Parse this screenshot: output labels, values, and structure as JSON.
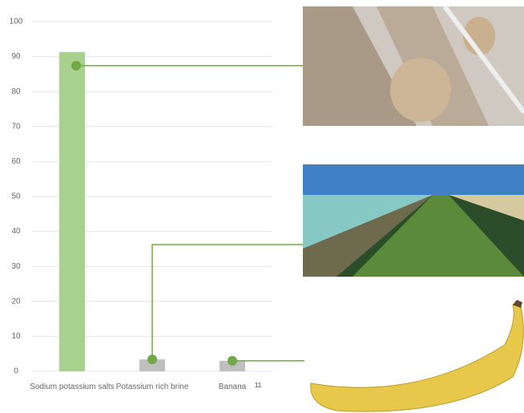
{
  "chart_data": {
    "type": "bar",
    "categories": [
      "Sodium potassium salts",
      "Potassium rich brine",
      "Banana"
    ],
    "values": [
      91.3,
      3.4,
      3.0
    ],
    "colors": [
      "#a9d18e",
      "#bfbfbf",
      "#bfbfbf"
    ],
    "marker_color": "#70a845",
    "ylim": [
      0,
      100
    ],
    "yticks": [
      0,
      10,
      20,
      30,
      40,
      50,
      60,
      70,
      80,
      90,
      100
    ],
    "grid": true,
    "annotation": "11"
  }
}
